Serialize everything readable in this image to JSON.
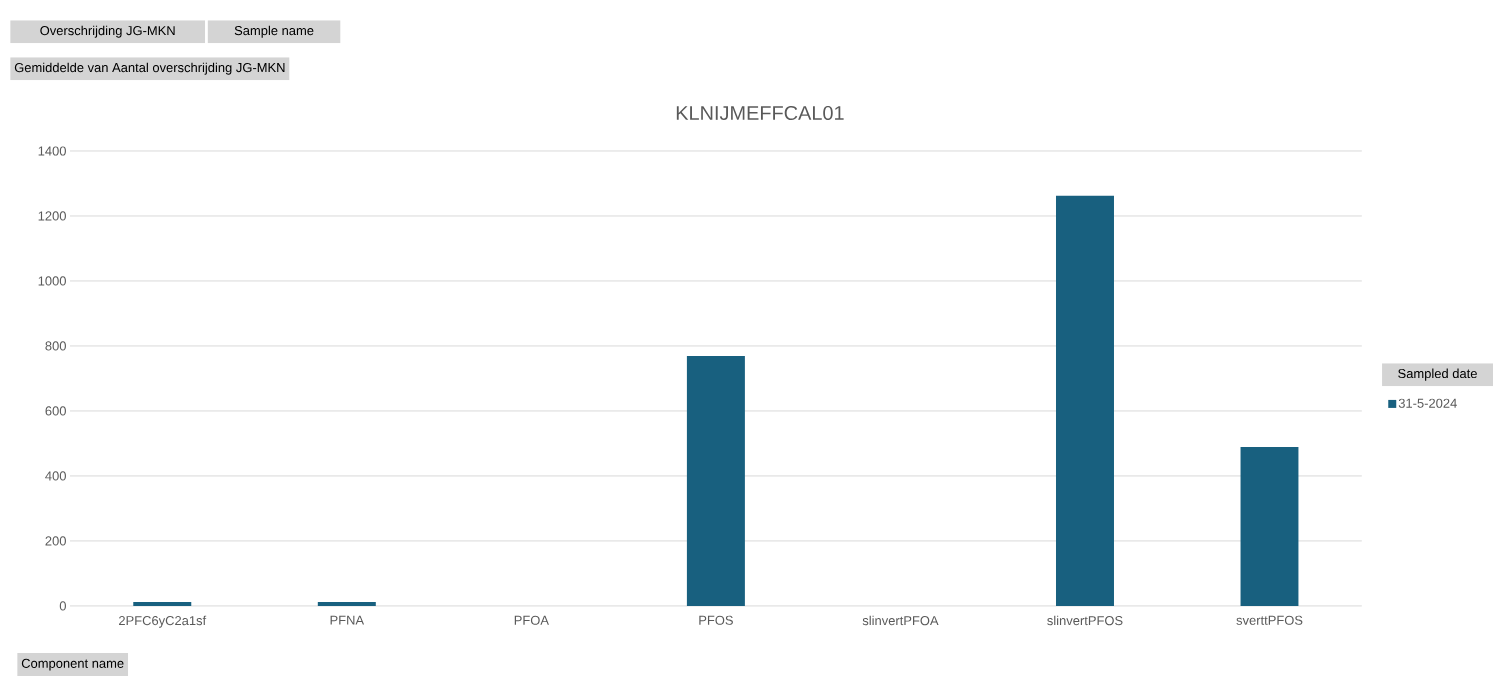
{
  "chart_data": {
    "type": "bar",
    "title": "KLNIJMEFFCAL01",
    "xlabel": "Component name",
    "legend_title": "Sampled date",
    "annotations": [
      "Overschrijding JG-MKN",
      "Sample name",
      "Gemiddelde van  Aantal overschrijding JG-MKN"
    ],
    "categories": [
      "2PFC6yC2a1sf",
      "PFNA",
      "PFOA",
      "PFOS",
      "slinvertPFOA",
      "slinvertPFOS",
      "sverttPFOS"
    ],
    "series": [
      {
        "name": "31-5-2024",
        "color": "#18607f",
        "values": [
          12,
          12,
          null,
          769,
          null,
          1262,
          489
        ]
      }
    ],
    "ylim": [
      0,
      1400
    ],
    "yticks": [
      0,
      200,
      400,
      600,
      800,
      1000,
      1200,
      1400
    ],
    "grid": "y",
    "legend": "right"
  }
}
